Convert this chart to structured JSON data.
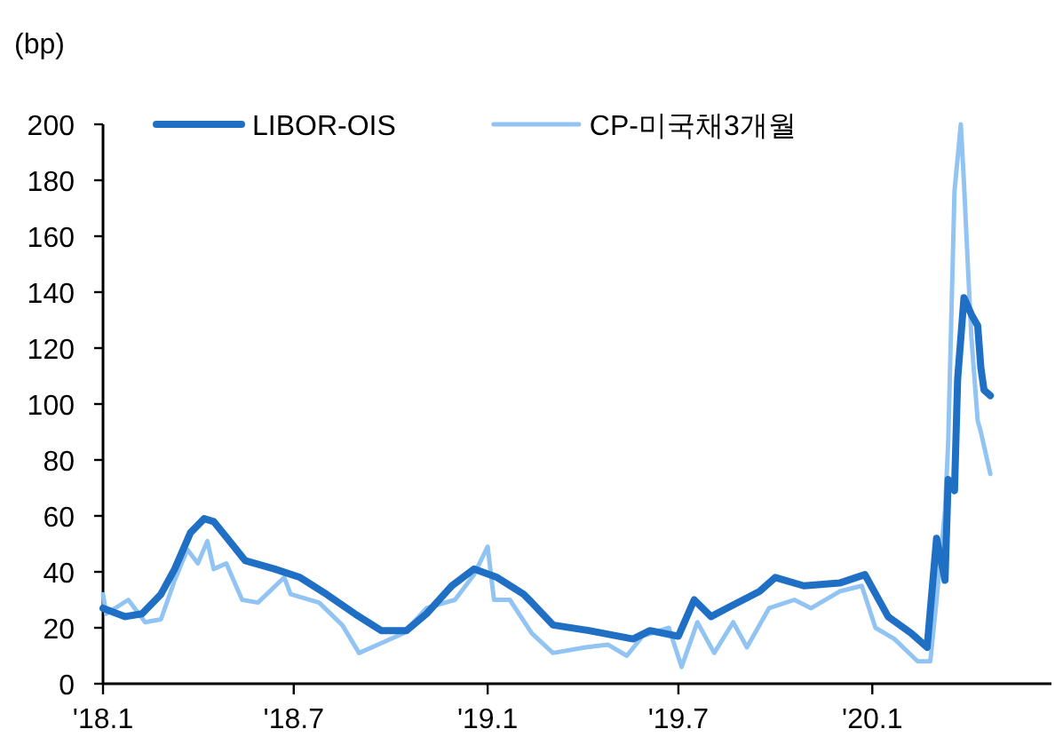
{
  "chart_data": {
    "type": "line",
    "ylabel": "(bp)",
    "xlim": [
      "2018-01-01",
      "2020-06-19"
    ],
    "ylim": [
      0,
      200
    ],
    "xticks": [
      {
        "value": "2018-01-01",
        "label": "'18.1"
      },
      {
        "value": "2018-07-01",
        "label": "'18.7"
      },
      {
        "value": "2019-01-01",
        "label": "'19.1"
      },
      {
        "value": "2019-07-01",
        "label": "'19.7"
      },
      {
        "value": "2020-01-01",
        "label": "'20.1"
      }
    ],
    "yticks": [
      0,
      20,
      40,
      60,
      80,
      100,
      120,
      140,
      160,
      180,
      200
    ],
    "grid": false,
    "legend": "top",
    "marker": "none",
    "series": [
      {
        "name": "LIBOR-OIS",
        "color": "#1f6fc5",
        "x": [
          "2018-01-01",
          "2018-01-22",
          "2018-02-07",
          "2018-02-25",
          "2018-03-10",
          "2018-03-25",
          "2018-04-07",
          "2018-04-16",
          "2018-05-01",
          "2018-05-16",
          "2018-06-13",
          "2018-07-07",
          "2018-08-01",
          "2018-08-28",
          "2018-09-22",
          "2018-10-16",
          "2018-11-04",
          "2018-11-28",
          "2018-12-19",
          "2019-01-10",
          "2019-02-04",
          "2019-02-12",
          "2019-03-04",
          "2019-04-07",
          "2019-05-19",
          "2019-06-04",
          "2019-07-01",
          "2019-07-16",
          "2019-08-01",
          "2019-08-16",
          "2019-09-16",
          "2019-10-01",
          "2019-10-28",
          "2019-12-01",
          "2019-12-25",
          "2020-01-16",
          "2020-02-07",
          "2020-02-22",
          "2020-03-02",
          "2020-03-10",
          "2020-03-13",
          "2020-03-19",
          "2020-03-22",
          "2020-03-28",
          "2020-04-04",
          "2020-04-10",
          "2020-04-13",
          "2020-04-16",
          "2020-04-22"
        ],
        "values": [
          27,
          24,
          25,
          32,
          41,
          54,
          59,
          58,
          51,
          44,
          41,
          38,
          32,
          25,
          19,
          19,
          25,
          35,
          41,
          38,
          32,
          29,
          21,
          19,
          16,
          19,
          17,
          30,
          24,
          27,
          33,
          38,
          35,
          36,
          39,
          24,
          18,
          13,
          52,
          37,
          73,
          69,
          109,
          138,
          132,
          128,
          113,
          105,
          103
        ]
      },
      {
        "name": "CP-미국채3개월",
        "color": "#91c4f2",
        "x": [
          "2018-01-01",
          "2018-01-04",
          "2018-01-25",
          "2018-02-10",
          "2018-02-25",
          "2018-03-10",
          "2018-03-22",
          "2018-04-01",
          "2018-04-10",
          "2018-04-16",
          "2018-04-28",
          "2018-05-13",
          "2018-05-28",
          "2018-06-22",
          "2018-06-28",
          "2018-07-25",
          "2018-08-16",
          "2018-09-01",
          "2018-09-25",
          "2018-10-13",
          "2018-11-04",
          "2018-12-01",
          "2018-12-19",
          "2019-01-01",
          "2019-01-07",
          "2019-01-22",
          "2019-02-12",
          "2019-03-04",
          "2019-04-04",
          "2019-04-25",
          "2019-05-13",
          "2019-05-28",
          "2019-06-22",
          "2019-07-04",
          "2019-07-19",
          "2019-08-04",
          "2019-08-22",
          "2019-09-04",
          "2019-09-25",
          "2019-10-19",
          "2019-11-04",
          "2019-12-01",
          "2019-12-22",
          "2020-01-04",
          "2020-01-22",
          "2020-02-13",
          "2020-02-25",
          "2020-03-02",
          "2020-03-10",
          "2020-03-13",
          "2020-03-19",
          "2020-03-25",
          "2020-03-28",
          "2020-04-01",
          "2020-04-04",
          "2020-04-10",
          "2020-04-13",
          "2020-04-22"
        ],
        "values": [
          32,
          25,
          30,
          22,
          23,
          37,
          48,
          43,
          51,
          41,
          43,
          30,
          29,
          38,
          32,
          29,
          21,
          11,
          15,
          18,
          27,
          30,
          39,
          49,
          30,
          30,
          18,
          11,
          13,
          14,
          10,
          17,
          20,
          6,
          22,
          11,
          22,
          13,
          27,
          30,
          27,
          33,
          35,
          20,
          16,
          8,
          8,
          30,
          62,
          86,
          176,
          200,
          179,
          147,
          124,
          94,
          90,
          75
        ]
      }
    ]
  }
}
